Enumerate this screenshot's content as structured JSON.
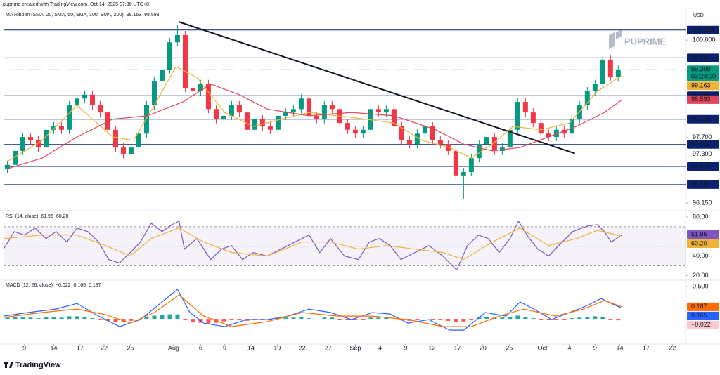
{
  "header": {
    "text": "puprime created with TradingView.com, Oct 14, 2025 07:36 UTC+8",
    "currency": "USD",
    "watermark": "PUPRIME",
    "footer": "TradingView"
  },
  "chart_data": [
    {
      "type": "candlestick",
      "title": "MA Ribbon (SMA, 20, SMA, 50, SMA, 100, SMA, 200)",
      "xlim": [
        -0.5,
        87.7
      ],
      "ylim": [
        96.0,
        100.7
      ],
      "yticks": [
        {
          "value": 100.0,
          "label": "100.000"
        },
        {
          "value": 97.7,
          "label": "97.700"
        },
        {
          "value": 97.3,
          "label": "97.300"
        },
        {
          "value": 96.15,
          "label": "96.150"
        }
      ],
      "up_color": "#089981",
      "down_color": "#f23645",
      "open": [
        96.95,
        97.05,
        97.38,
        97.71,
        97.63,
        97.46,
        97.88,
        97.96,
        97.88,
        98.46,
        98.62,
        98.71,
        98.46,
        98.29,
        97.88,
        97.46,
        97.3,
        97.46,
        97.79,
        98.46,
        99.04,
        99.29,
        99.95,
        100.12,
        98.87,
        98.79,
        98.96,
        98.37,
        98.13,
        98.21,
        98.46,
        98.29,
        97.88,
        98.13,
        97.96,
        97.88,
        98.21,
        98.29,
        98.37,
        98.62,
        98.21,
        98.13,
        98.46,
        98.37,
        98.04,
        97.88,
        97.79,
        97.88,
        98.37,
        98.29,
        98.37,
        97.96,
        97.63,
        97.54,
        97.79,
        97.96,
        97.63,
        97.54,
        97.38,
        96.8,
        96.88,
        97.21,
        97.54,
        97.71,
        97.38,
        97.46,
        97.88,
        98.54,
        98.29,
        98.04,
        97.79,
        97.71,
        97.88,
        97.79,
        98.13,
        98.46,
        98.79,
        98.96,
        99.54,
        99.12
      ],
      "high": [
        97.15,
        97.48,
        97.81,
        97.81,
        97.73,
        97.98,
        98.06,
        98.06,
        98.56,
        98.72,
        98.81,
        98.81,
        98.56,
        98.39,
        97.98,
        97.56,
        97.56,
        97.89,
        98.56,
        99.14,
        99.39,
        100.05,
        100.35,
        100.22,
        98.97,
        99.06,
        99.06,
        98.47,
        98.31,
        98.56,
        98.56,
        98.39,
        98.23,
        98.23,
        98.06,
        98.31,
        98.39,
        98.47,
        98.72,
        98.72,
        98.31,
        98.56,
        98.56,
        98.47,
        98.14,
        97.98,
        97.98,
        98.47,
        98.47,
        98.47,
        98.47,
        98.06,
        97.73,
        97.89,
        98.06,
        98.06,
        97.73,
        97.64,
        97.48,
        96.98,
        97.31,
        97.64,
        97.81,
        97.81,
        97.56,
        97.98,
        98.64,
        98.64,
        98.39,
        98.14,
        97.89,
        97.98,
        97.98,
        98.23,
        98.56,
        98.89,
        99.06,
        99.64,
        99.64,
        99.4
      ],
      "low": [
        96.85,
        96.95,
        97.28,
        97.53,
        97.36,
        97.36,
        97.78,
        97.78,
        97.78,
        98.36,
        98.52,
        98.36,
        98.19,
        97.78,
        97.36,
        97.2,
        97.2,
        97.36,
        97.69,
        98.36,
        98.94,
        99.19,
        99.85,
        98.77,
        98.69,
        98.69,
        98.27,
        98.03,
        98.03,
        98.11,
        98.19,
        97.78,
        97.78,
        97.86,
        97.78,
        97.78,
        98.11,
        98.19,
        98.27,
        98.11,
        98.03,
        98.03,
        98.27,
        97.94,
        97.78,
        97.69,
        97.69,
        97.78,
        98.19,
        98.19,
        97.86,
        97.53,
        97.44,
        97.44,
        97.69,
        97.53,
        97.44,
        97.28,
        96.7,
        96.25,
        96.78,
        97.11,
        97.44,
        97.28,
        97.28,
        97.36,
        97.78,
        98.19,
        97.94,
        97.69,
        97.61,
        97.61,
        97.69,
        97.69,
        98.03,
        98.36,
        98.69,
        98.86,
        99.02,
        99.02
      ],
      "close": [
        97.05,
        97.38,
        97.71,
        97.63,
        97.46,
        97.88,
        97.96,
        97.88,
        98.46,
        98.62,
        98.71,
        98.46,
        98.29,
        97.88,
        97.46,
        97.3,
        97.46,
        97.79,
        98.46,
        99.04,
        99.29,
        99.95,
        100.12,
        98.87,
        98.79,
        98.96,
        98.37,
        98.13,
        98.21,
        98.46,
        98.29,
        97.88,
        98.13,
        97.96,
        97.88,
        98.21,
        98.29,
        98.37,
        98.62,
        98.21,
        98.13,
        98.46,
        98.37,
        98.04,
        97.88,
        97.79,
        97.88,
        98.37,
        98.29,
        98.37,
        97.96,
        97.63,
        97.54,
        97.79,
        97.96,
        97.63,
        97.54,
        97.38,
        96.8,
        96.88,
        97.21,
        97.54,
        97.71,
        97.38,
        97.46,
        97.88,
        98.54,
        98.29,
        98.04,
        97.79,
        97.71,
        97.88,
        97.79,
        98.13,
        98.46,
        98.79,
        98.96,
        99.54,
        99.12,
        99.3
      ],
      "last_price_label": "99.300",
      "countdown": "03:24:00",
      "last_price_color": "#089981",
      "levels": [
        {
          "value": 100.239,
          "label": "100.239"
        },
        {
          "value": 99.582,
          "label": "99.582"
        },
        {
          "value": 98.686,
          "label": "98.686"
        },
        {
          "value": 98.13,
          "label": "98.130"
        },
        {
          "value": 97.532,
          "label": "97.532"
        },
        {
          "value": 97.014,
          "label": "97.014"
        },
        {
          "value": 96.584,
          "label": "96.584"
        }
      ],
      "level_color": "#0c2270",
      "trendline": {
        "x": [
          22.2,
          73.4
        ],
        "y": [
          100.43,
          97.32
        ],
        "color": "#131722"
      },
      "series": [
        {
          "color": "#f0b33a",
          "last_label": "99.163",
          "x": [
            0,
            4.5,
            9,
            13.6,
            16.3,
            19,
            21.8,
            24.5,
            28.1,
            31.8,
            35.4,
            39,
            42.7,
            46.3,
            50,
            53.6,
            57.2,
            60,
            62.7,
            65.4,
            69,
            72.7,
            76.3,
            79.5
          ],
          "values": [
            97.13,
            97.63,
            98.46,
            97.71,
            97.63,
            98.46,
            99.37,
            99.12,
            98.29,
            97.96,
            98.13,
            98.29,
            98.21,
            98.13,
            98.04,
            97.63,
            97.46,
            97.21,
            97.54,
            97.96,
            97.88,
            98.04,
            98.79,
            99.163
          ]
        },
        {
          "color": "#e0455b",
          "last_label": "98.593",
          "x": [
            0,
            4.5,
            9,
            13.6,
            18.1,
            22.7,
            26.3,
            30,
            33.6,
            39,
            44.5,
            50,
            55.4,
            59,
            62.7,
            66.3,
            70,
            73.6,
            77.2,
            79.5
          ],
          "values": [
            96.96,
            97.21,
            97.71,
            98.13,
            98.21,
            98.54,
            98.96,
            98.71,
            98.37,
            98.21,
            98.29,
            98.21,
            97.88,
            97.54,
            97.38,
            97.46,
            97.71,
            97.96,
            98.29,
            98.593
          ]
        }
      ]
    },
    {
      "type": "line",
      "title": "RSI (14, close)",
      "xlim": [
        -0.5,
        87.7
      ],
      "ylim": [
        16,
        85
      ],
      "yticks": [
        {
          "value": 80,
          "label": "80.00"
        },
        {
          "value": 40,
          "label": "40.00"
        },
        {
          "value": 20,
          "label": "20.00"
        }
      ],
      "band": [
        30,
        70
      ],
      "midline": 50,
      "band_color": "#7e57c2",
      "series": [
        {
          "color": "#7e57c2",
          "last_label": "61.96",
          "x": [
            -0.5,
            0.9,
            2.2,
            3.6,
            5,
            6.3,
            7.7,
            9,
            10.4,
            11.8,
            13.1,
            14.5,
            15.9,
            17.2,
            18.6,
            20,
            21.3,
            22.2,
            22.9,
            24.5,
            26.3,
            27.7,
            29,
            30.4,
            31.8,
            33.6,
            35.4,
            37.2,
            39,
            40.4,
            41.8,
            43.6,
            45.4,
            46.8,
            48.1,
            49.5,
            50.9,
            52.7,
            54.5,
            56.3,
            58.1,
            59.5,
            60.9,
            62.2,
            63.6,
            65,
            66.1,
            67.2,
            68.6,
            70,
            71.3,
            73.1,
            75,
            76.3,
            77.2,
            78.1,
            79.5
          ],
          "values": [
            47.1,
            65,
            61.4,
            68.6,
            57.9,
            65,
            54.3,
            68.6,
            65,
            54.3,
            36.4,
            32.9,
            43.6,
            54.3,
            73.6,
            65,
            72.1,
            75.7,
            47.1,
            57.9,
            36.4,
            47.1,
            50.7,
            36.4,
            43.6,
            40,
            47.1,
            54.3,
            61.4,
            43.6,
            57.9,
            40,
            36.4,
            54.3,
            57.9,
            50.7,
            36.4,
            43.6,
            50.7,
            40,
            25.7,
            50.7,
            61.4,
            57.9,
            43.6,
            57.9,
            75.7,
            61.4,
            47.1,
            40,
            50.7,
            65,
            70.7,
            72.1,
            65,
            54.3,
            61.96
          ]
        },
        {
          "color": "#f0b33a",
          "last_label": "60.20",
          "x": [
            -0.5,
            4.5,
            9,
            12.7,
            15.9,
            18.6,
            22.2,
            25.4,
            29,
            33.6,
            38.1,
            41.8,
            45.4,
            49.1,
            52.7,
            56.3,
            59,
            62.7,
            66.3,
            70,
            73.6,
            76.3,
            79.5
          ],
          "values": [
            57.9,
            61.4,
            61.4,
            50.7,
            40,
            57.9,
            68.6,
            54.3,
            43.6,
            40,
            54.3,
            54.3,
            47.1,
            50.7,
            47.1,
            43.6,
            36.4,
            54.3,
            68.6,
            50.7,
            57.9,
            66.4,
            60.2
          ]
        }
      ]
    },
    {
      "type": "macd",
      "title": "MACD (12, 26, close)",
      "xlim": [
        -0.5,
        87.7
      ],
      "ylim": [
        -0.39,
        0.587
      ],
      "yticks": [
        {
          "value": 0.5,
          "label": "0.500"
        }
      ],
      "xticks": [
        {
          "value": 2.2,
          "label": "9"
        },
        {
          "value": 6,
          "label": "14"
        },
        {
          "value": 9.4,
          "label": "17"
        },
        {
          "value": 12.5,
          "label": "22"
        },
        {
          "value": 15.9,
          "label": "25"
        },
        {
          "value": 21.5,
          "label": "Aug"
        },
        {
          "value": 25,
          "label": "6"
        },
        {
          "value": 28.1,
          "label": "9"
        },
        {
          "value": 31.5,
          "label": "14"
        },
        {
          "value": 34.9,
          "label": "19"
        },
        {
          "value": 38.1,
          "label": "22"
        },
        {
          "value": 41.5,
          "label": "27"
        },
        {
          "value": 45,
          "label": "Sep"
        },
        {
          "value": 48.2,
          "label": "4"
        },
        {
          "value": 51.5,
          "label": "9"
        },
        {
          "value": 54.9,
          "label": "12"
        },
        {
          "value": 58.2,
          "label": "17"
        },
        {
          "value": 61.5,
          "label": "20"
        },
        {
          "value": 64.9,
          "label": "25"
        },
        {
          "value": 69.2,
          "label": "Oct"
        },
        {
          "value": 72.7,
          "label": "4"
        },
        {
          "value": 76,
          "label": "9"
        },
        {
          "value": 79.2,
          "label": "14"
        },
        {
          "value": 82.6,
          "label": "17"
        },
        {
          "value": 86,
          "label": "22"
        }
      ],
      "histogram": {
        "up_color": "#26a69a",
        "down_color": "#ff5252",
        "last_label": "−0.022",
        "values": [
          0.02,
          0.03,
          0.03,
          0.02,
          0.01,
          0.03,
          0.03,
          0.02,
          0.04,
          0.04,
          0.03,
          0.01,
          -0.01,
          -0.03,
          -0.05,
          -0.05,
          -0.03,
          0.0,
          0.03,
          0.05,
          0.06,
          0.07,
          0.07,
          -0.02,
          -0.05,
          -0.06,
          -0.07,
          -0.06,
          -0.04,
          -0.02,
          -0.02,
          -0.03,
          -0.02,
          -0.02,
          -0.01,
          0.01,
          0.02,
          0.02,
          0.03,
          0.01,
          0.0,
          0.02,
          0.02,
          -0.01,
          -0.02,
          -0.02,
          -0.01,
          0.02,
          0.02,
          0.02,
          0.0,
          -0.02,
          -0.03,
          -0.02,
          0.0,
          -0.01,
          -0.02,
          -0.03,
          -0.05,
          -0.04,
          -0.01,
          0.02,
          0.03,
          0.02,
          0.02,
          0.03,
          0.05,
          0.03,
          0.01,
          -0.01,
          -0.02,
          -0.01,
          -0.01,
          0.01,
          0.02,
          0.03,
          0.04,
          0.03,
          -0.02,
          -0.022
        ]
      },
      "series": [
        {
          "color": "#2962ff",
          "last_label": "0.165",
          "x": [
            -0.5,
            2.7,
            6.3,
            9,
            11.8,
            14.5,
            17.2,
            20,
            22,
            23.6,
            25.4,
            28.1,
            30.9,
            33.6,
            36.3,
            39,
            41.8,
            44.5,
            47.2,
            49.5,
            51.8,
            54.5,
            57.2,
            59,
            61.8,
            64.5,
            66.3,
            68.1,
            70.4,
            72.7,
            75,
            76.8,
            78.1,
            79.5
          ],
          "values": [
            0.043,
            0.098,
            0.152,
            0.239,
            0.043,
            -0.12,
            -0.011,
            0.261,
            0.457,
            0.098,
            -0.065,
            -0.12,
            -0.011,
            -0.011,
            0.043,
            0.152,
            0.098,
            -0.011,
            0.098,
            0.076,
            -0.065,
            -0.011,
            -0.174,
            -0.174,
            0.098,
            0.043,
            0.261,
            0.152,
            -0.011,
            0.098,
            0.207,
            0.315,
            0.239,
            0.165
          ]
        },
        {
          "color": "#ff6d00",
          "last_label": "0.187",
          "x": [
            -0.5,
            4.5,
            9,
            12.7,
            15.9,
            19,
            22.2,
            25.4,
            29,
            33.6,
            38.1,
            42.7,
            47.2,
            51.8,
            56.3,
            60,
            63.6,
            66.8,
            70.9,
            74.5,
            77.2,
            79.5
          ],
          "values": [
            0.022,
            0.098,
            0.152,
            0.065,
            -0.065,
            0.098,
            0.37,
            0.043,
            -0.12,
            -0.043,
            0.098,
            0.043,
            0.043,
            -0.011,
            -0.12,
            -0.12,
            0.043,
            0.152,
            0.043,
            0.152,
            0.283,
            0.187
          ]
        }
      ]
    }
  ]
}
